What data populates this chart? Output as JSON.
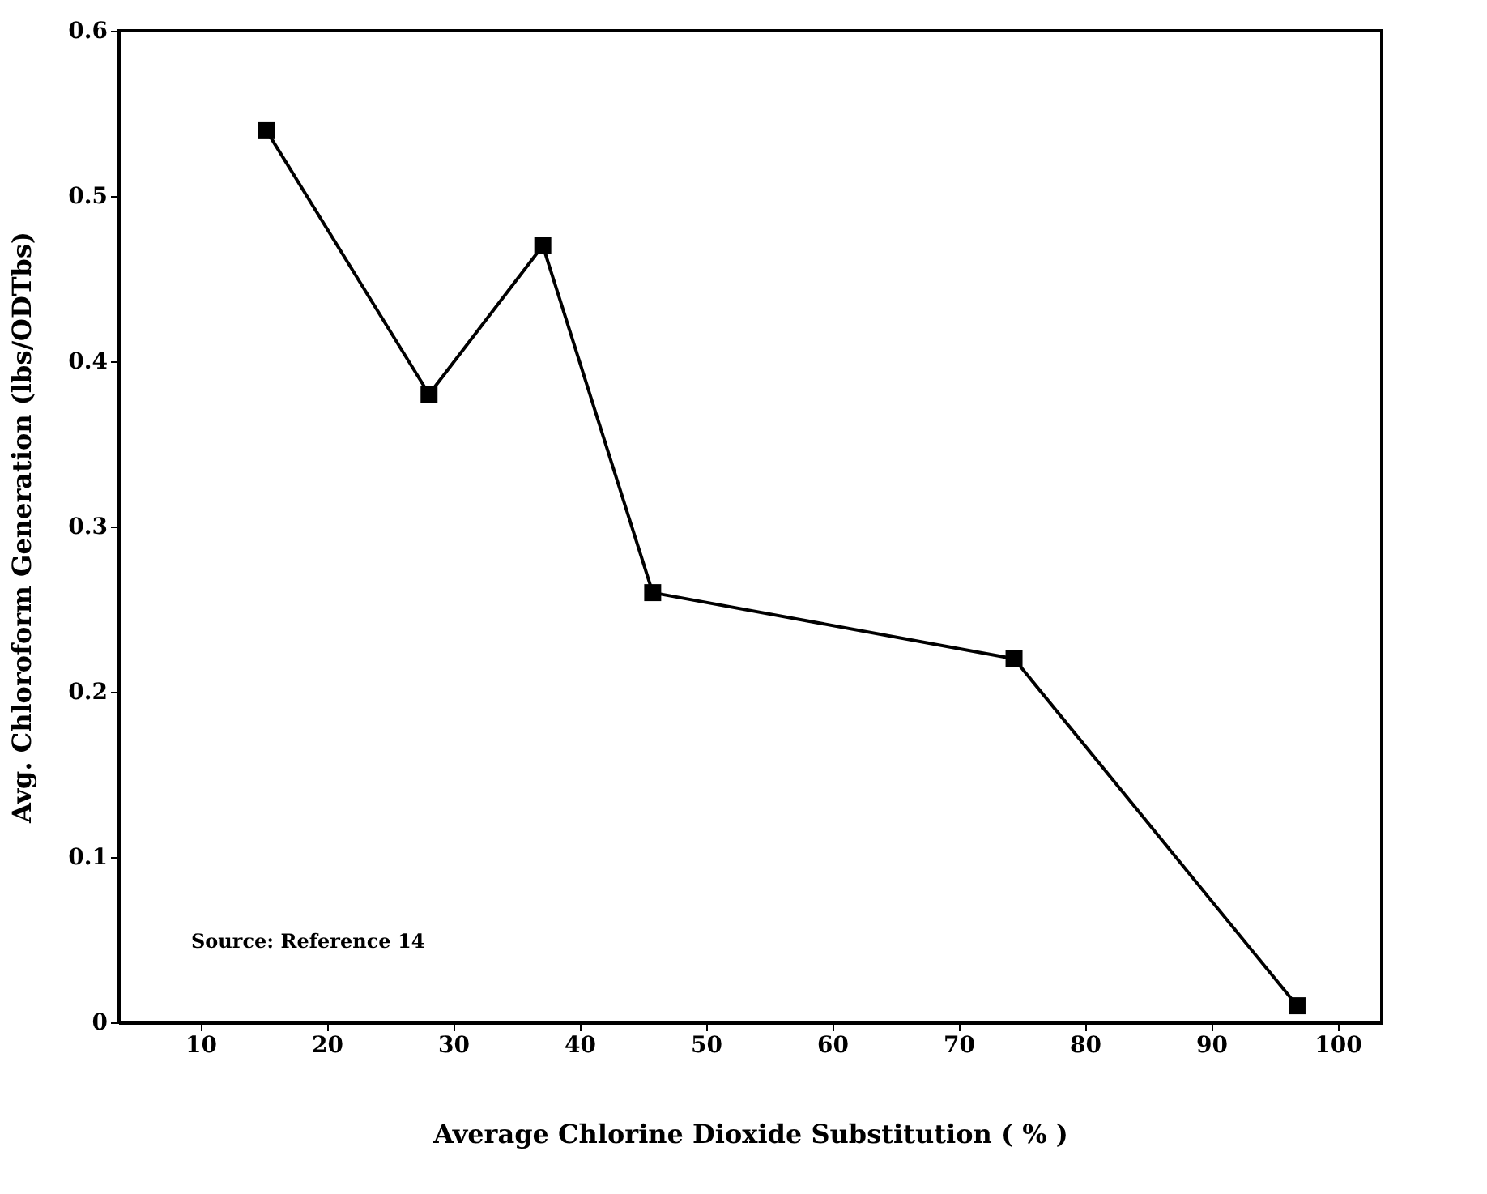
{
  "chart_data": {
    "type": "line",
    "xlabel": "Average Chlorine Dioxide Substitution ( % )",
    "ylabel": "Avg. Chloroform Generation (lbs/ODTbs)",
    "x": [
      15.2,
      28.1,
      37.1,
      45.8,
      74.4,
      96.8
    ],
    "series": [
      {
        "color": "#000000",
        "values": [
          0.54,
          0.38,
          0.47,
          0.26,
          0.22,
          0.01
        ]
      }
    ],
    "xlim": [
      3.5,
      103.5
    ],
    "xticks": [
      10,
      20,
      30,
      40,
      50,
      60,
      70,
      80,
      90,
      100
    ],
    "ylim": [
      0,
      0.6
    ],
    "yticks": [
      {
        "value": 0,
        "label": "0"
      },
      0.1,
      0.2,
      0.3,
      0.4,
      0.5,
      0.6
    ],
    "marker": "square",
    "line_style": "solid",
    "grid": false,
    "annotations": [
      "Source:  Reference 14"
    ]
  }
}
